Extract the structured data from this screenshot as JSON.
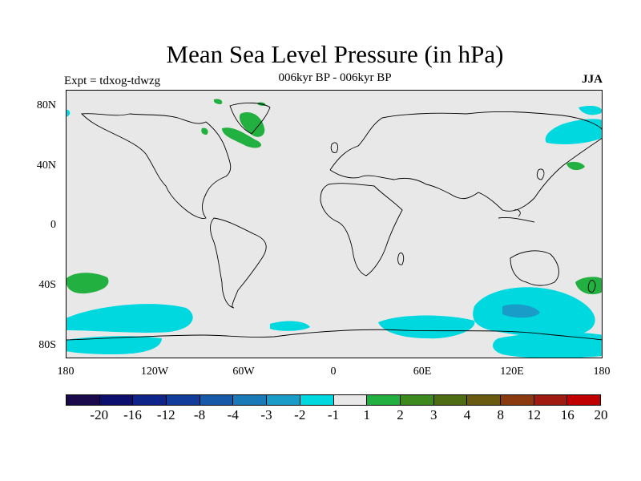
{
  "title": "Mean Sea Level Pressure (in hPa)",
  "subtitle": "006kyr BP - 006kyr BP",
  "experiment": "Expt = tdxog-tdwzg",
  "season": "JJA",
  "lat_labels": [
    "80N",
    "40N",
    "0",
    "40S",
    "80S"
  ],
  "lon_labels": [
    "180",
    "120W",
    "60W",
    "0",
    "60E",
    "120E",
    "180"
  ],
  "colorbar": {
    "labels": [
      "-20",
      "-16",
      "-12",
      "-8",
      "-4",
      "-3",
      "-2",
      "-1",
      "1",
      "2",
      "3",
      "4",
      "8",
      "12",
      "16",
      "20"
    ],
    "colors": [
      "#1a0a4c",
      "#0d0f6e",
      "#0f2488",
      "#123c9c",
      "#1559a8",
      "#1a7ab8",
      "#1a9cc8",
      "#00d8e0",
      "#e8e8e8",
      "#22b040",
      "#3c8a1e",
      "#4e6c12",
      "#6a5a10",
      "#8a3a0e",
      "#a01a10",
      "#c00000"
    ]
  },
  "map": {
    "ocean_color": "#e8e8e8",
    "coast_color": "#000000"
  }
}
